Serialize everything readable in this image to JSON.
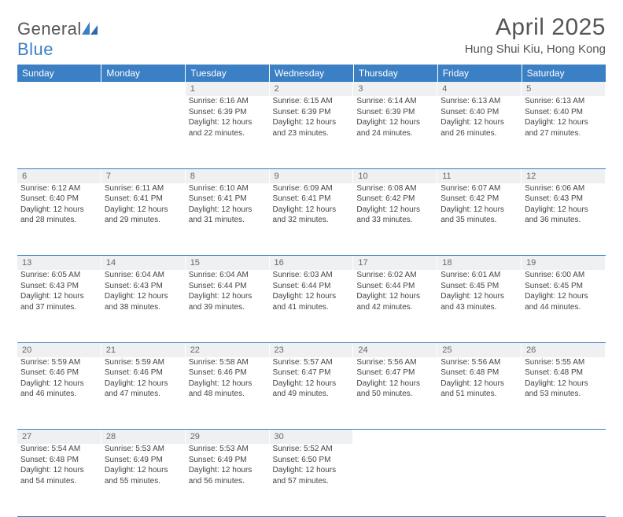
{
  "brand": {
    "name_a": "General",
    "name_b": "Blue"
  },
  "title": "April 2025",
  "location": "Hung Shui Kiu, Hong Kong",
  "colors": {
    "header_bg": "#3b7fc4",
    "daynum_bg": "#eef0f2",
    "text": "#444444",
    "rule": "#3b7fc4"
  },
  "weekdays": [
    "Sunday",
    "Monday",
    "Tuesday",
    "Wednesday",
    "Thursday",
    "Friday",
    "Saturday"
  ],
  "weeks": [
    [
      null,
      null,
      {
        "n": "1",
        "sr": "Sunrise: 6:16 AM",
        "ss": "Sunset: 6:39 PM",
        "dl": "Daylight: 12 hours and 22 minutes."
      },
      {
        "n": "2",
        "sr": "Sunrise: 6:15 AM",
        "ss": "Sunset: 6:39 PM",
        "dl": "Daylight: 12 hours and 23 minutes."
      },
      {
        "n": "3",
        "sr": "Sunrise: 6:14 AM",
        "ss": "Sunset: 6:39 PM",
        "dl": "Daylight: 12 hours and 24 minutes."
      },
      {
        "n": "4",
        "sr": "Sunrise: 6:13 AM",
        "ss": "Sunset: 6:40 PM",
        "dl": "Daylight: 12 hours and 26 minutes."
      },
      {
        "n": "5",
        "sr": "Sunrise: 6:13 AM",
        "ss": "Sunset: 6:40 PM",
        "dl": "Daylight: 12 hours and 27 minutes."
      }
    ],
    [
      {
        "n": "6",
        "sr": "Sunrise: 6:12 AM",
        "ss": "Sunset: 6:40 PM",
        "dl": "Daylight: 12 hours and 28 minutes."
      },
      {
        "n": "7",
        "sr": "Sunrise: 6:11 AM",
        "ss": "Sunset: 6:41 PM",
        "dl": "Daylight: 12 hours and 29 minutes."
      },
      {
        "n": "8",
        "sr": "Sunrise: 6:10 AM",
        "ss": "Sunset: 6:41 PM",
        "dl": "Daylight: 12 hours and 31 minutes."
      },
      {
        "n": "9",
        "sr": "Sunrise: 6:09 AM",
        "ss": "Sunset: 6:41 PM",
        "dl": "Daylight: 12 hours and 32 minutes."
      },
      {
        "n": "10",
        "sr": "Sunrise: 6:08 AM",
        "ss": "Sunset: 6:42 PM",
        "dl": "Daylight: 12 hours and 33 minutes."
      },
      {
        "n": "11",
        "sr": "Sunrise: 6:07 AM",
        "ss": "Sunset: 6:42 PM",
        "dl": "Daylight: 12 hours and 35 minutes."
      },
      {
        "n": "12",
        "sr": "Sunrise: 6:06 AM",
        "ss": "Sunset: 6:43 PM",
        "dl": "Daylight: 12 hours and 36 minutes."
      }
    ],
    [
      {
        "n": "13",
        "sr": "Sunrise: 6:05 AM",
        "ss": "Sunset: 6:43 PM",
        "dl": "Daylight: 12 hours and 37 minutes."
      },
      {
        "n": "14",
        "sr": "Sunrise: 6:04 AM",
        "ss": "Sunset: 6:43 PM",
        "dl": "Daylight: 12 hours and 38 minutes."
      },
      {
        "n": "15",
        "sr": "Sunrise: 6:04 AM",
        "ss": "Sunset: 6:44 PM",
        "dl": "Daylight: 12 hours and 39 minutes."
      },
      {
        "n": "16",
        "sr": "Sunrise: 6:03 AM",
        "ss": "Sunset: 6:44 PM",
        "dl": "Daylight: 12 hours and 41 minutes."
      },
      {
        "n": "17",
        "sr": "Sunrise: 6:02 AM",
        "ss": "Sunset: 6:44 PM",
        "dl": "Daylight: 12 hours and 42 minutes."
      },
      {
        "n": "18",
        "sr": "Sunrise: 6:01 AM",
        "ss": "Sunset: 6:45 PM",
        "dl": "Daylight: 12 hours and 43 minutes."
      },
      {
        "n": "19",
        "sr": "Sunrise: 6:00 AM",
        "ss": "Sunset: 6:45 PM",
        "dl": "Daylight: 12 hours and 44 minutes."
      }
    ],
    [
      {
        "n": "20",
        "sr": "Sunrise: 5:59 AM",
        "ss": "Sunset: 6:46 PM",
        "dl": "Daylight: 12 hours and 46 minutes."
      },
      {
        "n": "21",
        "sr": "Sunrise: 5:59 AM",
        "ss": "Sunset: 6:46 PM",
        "dl": "Daylight: 12 hours and 47 minutes."
      },
      {
        "n": "22",
        "sr": "Sunrise: 5:58 AM",
        "ss": "Sunset: 6:46 PM",
        "dl": "Daylight: 12 hours and 48 minutes."
      },
      {
        "n": "23",
        "sr": "Sunrise: 5:57 AM",
        "ss": "Sunset: 6:47 PM",
        "dl": "Daylight: 12 hours and 49 minutes."
      },
      {
        "n": "24",
        "sr": "Sunrise: 5:56 AM",
        "ss": "Sunset: 6:47 PM",
        "dl": "Daylight: 12 hours and 50 minutes."
      },
      {
        "n": "25",
        "sr": "Sunrise: 5:56 AM",
        "ss": "Sunset: 6:48 PM",
        "dl": "Daylight: 12 hours and 51 minutes."
      },
      {
        "n": "26",
        "sr": "Sunrise: 5:55 AM",
        "ss": "Sunset: 6:48 PM",
        "dl": "Daylight: 12 hours and 53 minutes."
      }
    ],
    [
      {
        "n": "27",
        "sr": "Sunrise: 5:54 AM",
        "ss": "Sunset: 6:48 PM",
        "dl": "Daylight: 12 hours and 54 minutes."
      },
      {
        "n": "28",
        "sr": "Sunrise: 5:53 AM",
        "ss": "Sunset: 6:49 PM",
        "dl": "Daylight: 12 hours and 55 minutes."
      },
      {
        "n": "29",
        "sr": "Sunrise: 5:53 AM",
        "ss": "Sunset: 6:49 PM",
        "dl": "Daylight: 12 hours and 56 minutes."
      },
      {
        "n": "30",
        "sr": "Sunrise: 5:52 AM",
        "ss": "Sunset: 6:50 PM",
        "dl": "Daylight: 12 hours and 57 minutes."
      },
      null,
      null,
      null
    ]
  ]
}
